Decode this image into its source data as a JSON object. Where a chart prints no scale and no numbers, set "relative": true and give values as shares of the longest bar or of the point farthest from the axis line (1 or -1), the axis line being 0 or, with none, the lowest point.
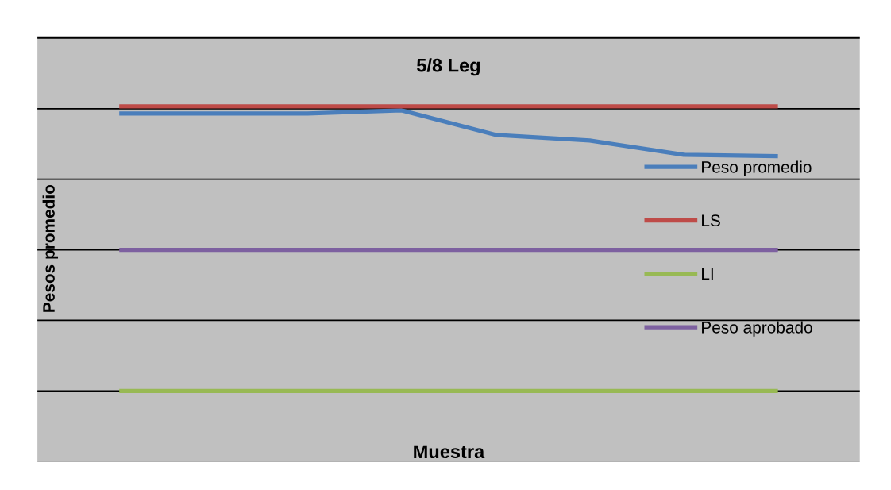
{
  "chart_data": {
    "type": "line",
    "title": "5/8 Leg",
    "xlabel": "Muestra",
    "ylabel": "Pesos promedio",
    "relative": true,
    "categories": [
      null,
      null,
      null,
      null,
      null,
      null,
      null,
      null
    ],
    "series": [
      {
        "name": "Peso promedio",
        "color": "#4a7ebb",
        "values": [
          0.975,
          0.975,
          0.975,
          0.986,
          0.9,
          0.88,
          0.83,
          0.825
        ]
      },
      {
        "name": "LS",
        "color": "#be4b48",
        "values": [
          1,
          1,
          1,
          1,
          1,
          1,
          1,
          1
        ]
      },
      {
        "name": "LI",
        "color": "#98b954",
        "values": [
          0,
          0,
          0,
          0,
          0,
          0,
          0,
          0
        ]
      },
      {
        "name": "Peso aprobado",
        "color": "#7d60a0",
        "values": [
          0.496,
          0.496,
          0.496,
          0.496,
          0.496,
          0.496,
          0.496,
          0.496
        ]
      }
    ],
    "grid": "y",
    "legend": "right",
    "marker": "none",
    "line_style": "solid"
  }
}
